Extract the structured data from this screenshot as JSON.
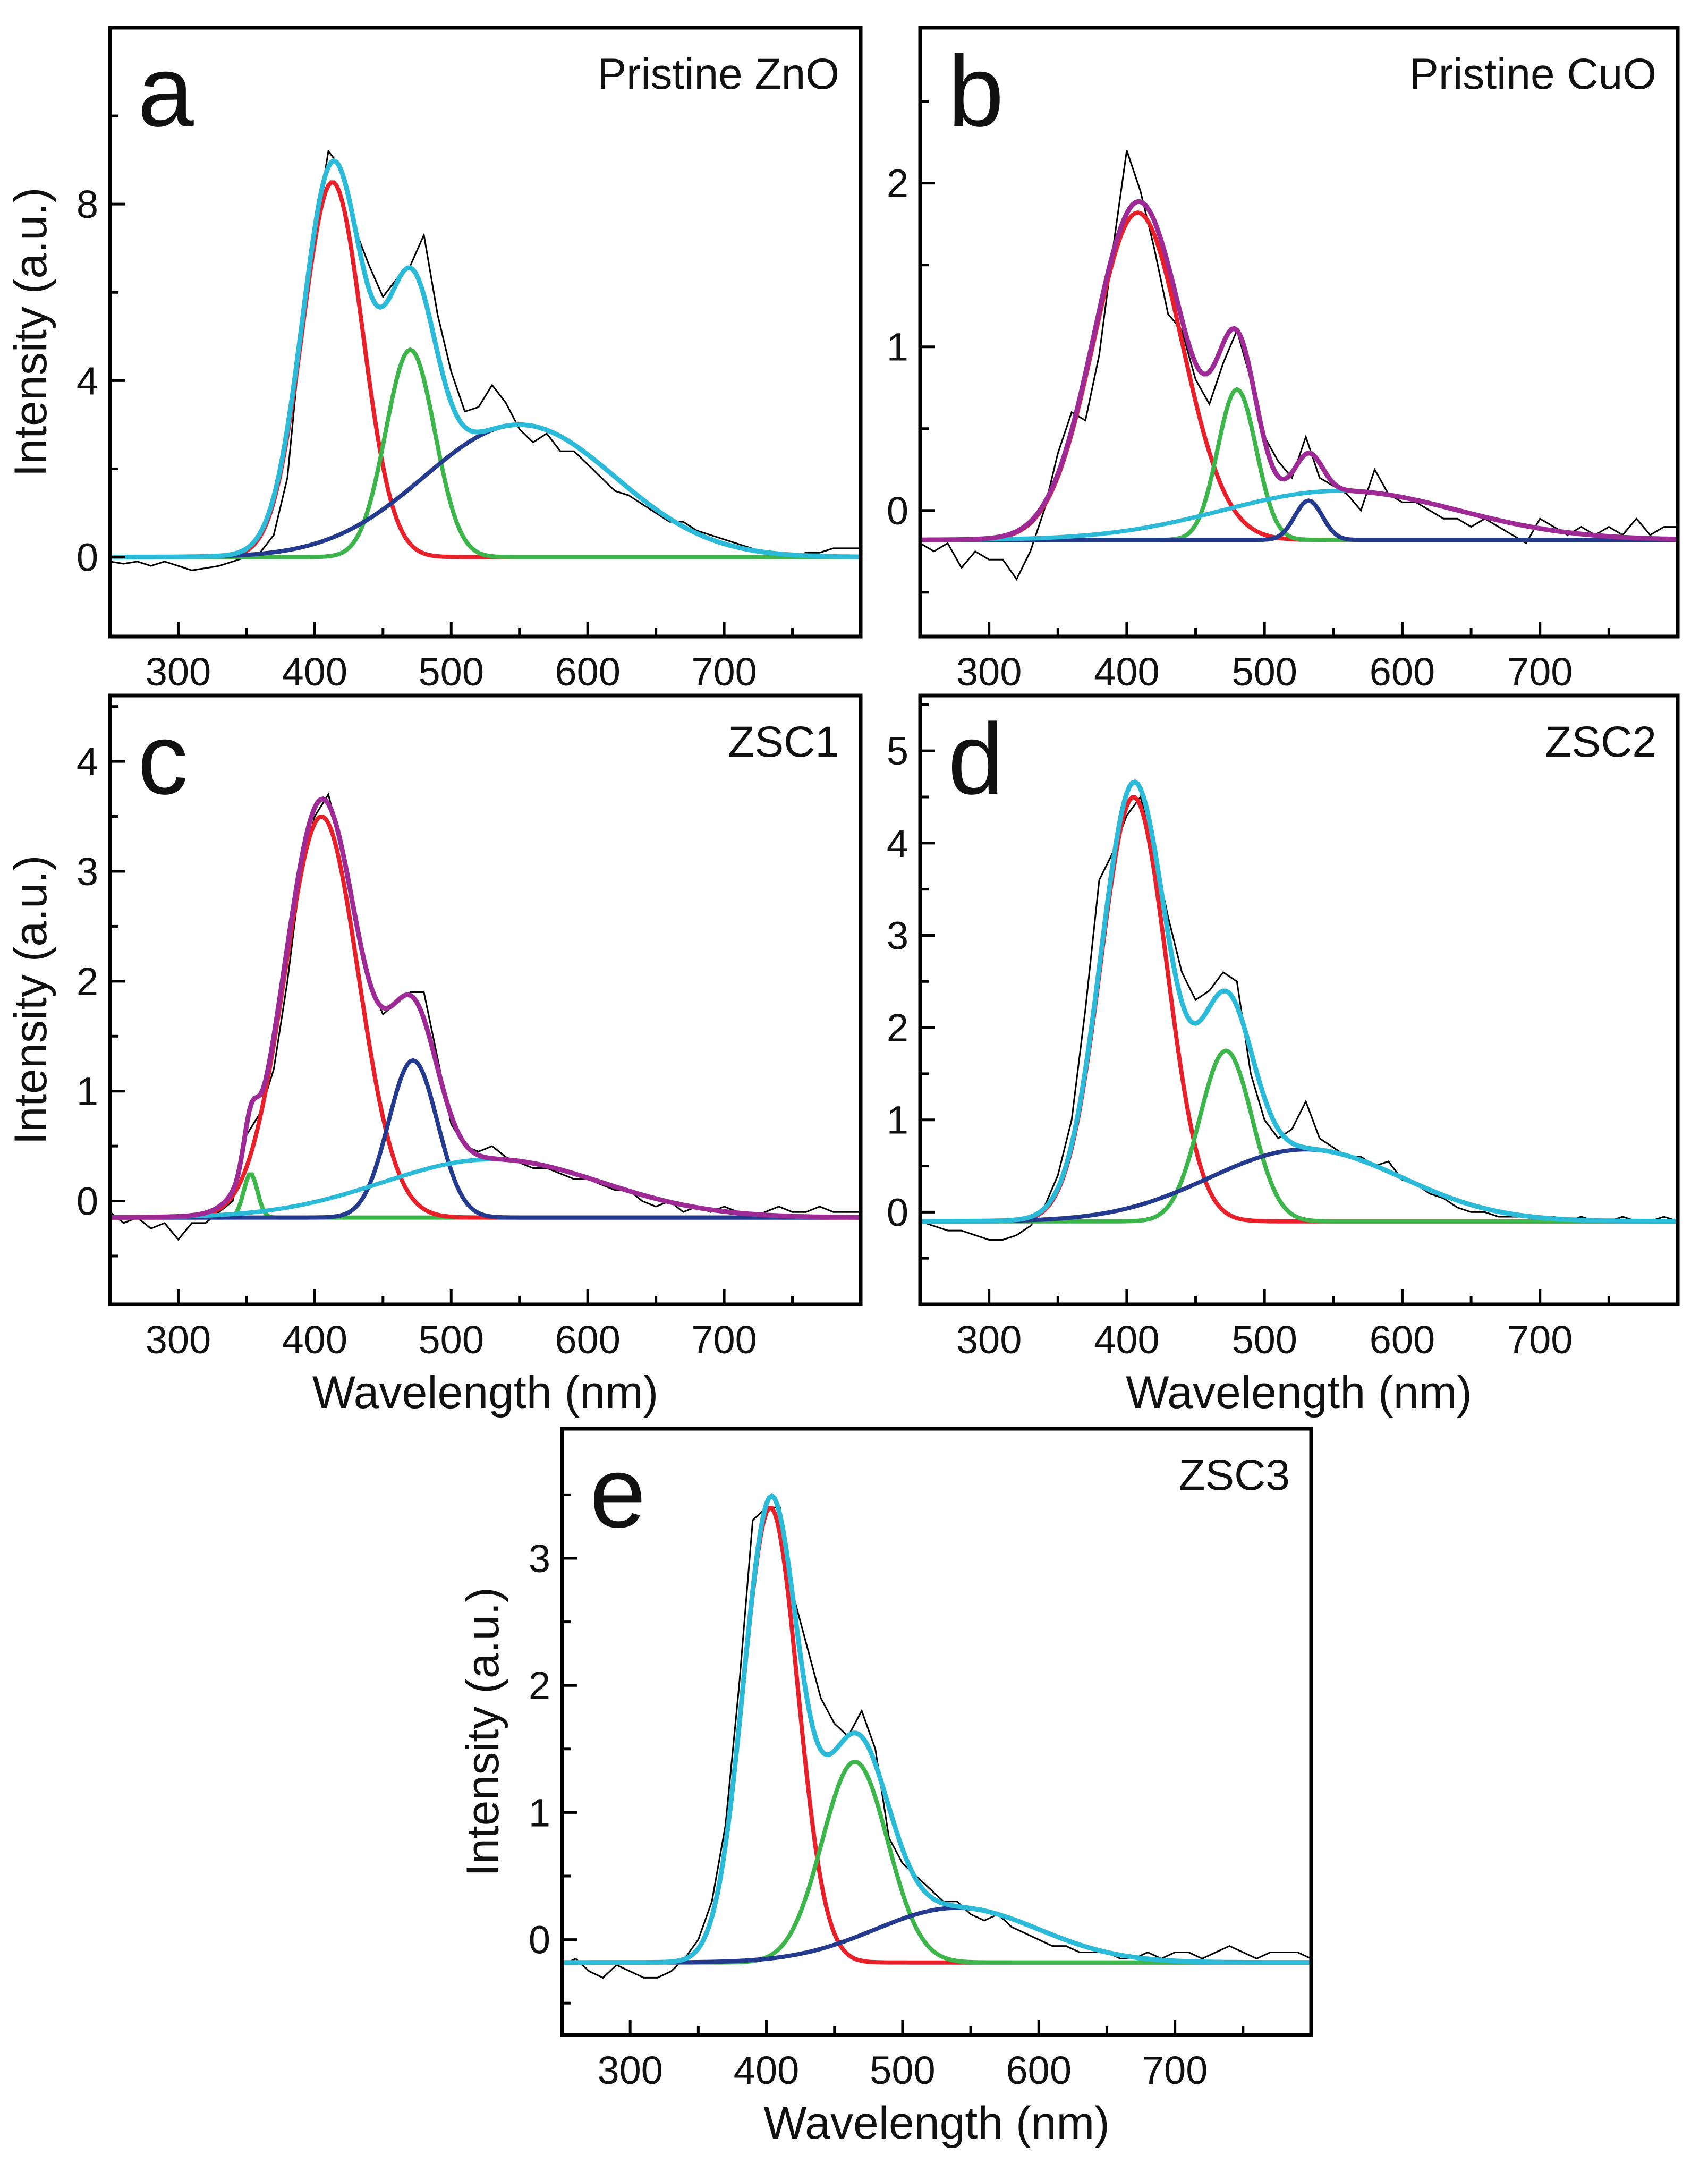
{
  "chart_data": [
    {
      "type": "line",
      "panel_letter": "a",
      "title": "Pristine ZnO",
      "xlabel": "",
      "ylabel": "Intensity (a.u.)",
      "xlim": [
        250,
        800
      ],
      "ylim": [
        -1.8,
        12
      ],
      "xticks": [
        300,
        400,
        500,
        600,
        700
      ],
      "yticks": [
        0,
        4,
        8
      ],
      "baseline": 0,
      "envelope_color": "#2bbbd8",
      "components": [
        {
          "color": "#e8202a",
          "center": 413,
          "amplitude": 8.5,
          "sigma": 22
        },
        {
          "color": "#3cb54a",
          "center": 470,
          "amplitude": 4.7,
          "sigma": 18
        },
        {
          "color": "#233a8f",
          "center": 550,
          "amplitude": 3.0,
          "sigma": 70
        }
      ],
      "measured_x_start": 250,
      "measured_x_step": 10,
      "measured": [
        -0.1,
        -0.15,
        -0.1,
        -0.2,
        -0.1,
        -0.2,
        -0.3,
        -0.25,
        -0.2,
        -0.1,
        0.0,
        0.1,
        0.5,
        1.8,
        5.0,
        7.3,
        9.2,
        8.8,
        7.4,
        6.6,
        5.9,
        6.3,
        6.6,
        7.3,
        5.5,
        4.2,
        3.3,
        3.4,
        3.9,
        3.5,
        2.9,
        2.6,
        2.8,
        2.4,
        2.4,
        2.1,
        1.8,
        1.5,
        1.4,
        1.2,
        1.0,
        0.8,
        0.8,
        0.6,
        0.5,
        0.4,
        0.3,
        0.2,
        0.1,
        0.0,
        0.0,
        0.1,
        0.1,
        0.2,
        0.2,
        0.2
      ]
    },
    {
      "type": "line",
      "panel_letter": "b",
      "title": "Pristine CuO",
      "xlabel": "",
      "ylabel": "",
      "xlim": [
        250,
        800
      ],
      "ylim": [
        -0.77,
        2.95
      ],
      "xticks": [
        300,
        400,
        500,
        600,
        700
      ],
      "yticks": [
        0,
        1,
        2
      ],
      "baseline": -0.18,
      "envelope_color": "#9e2a96",
      "components": [
        {
          "color": "#e8202a",
          "center": 408,
          "amplitude": 2.0,
          "sigma": 32
        },
        {
          "color": "#3cb54a",
          "center": 480,
          "amplitude": 0.92,
          "sigma": 14
        },
        {
          "color": "#233a8f",
          "center": 532,
          "amplitude": 0.24,
          "sigma": 10
        },
        {
          "color": "#2bbbd8",
          "center": 555,
          "amplitude": 0.3,
          "sigma": 85
        }
      ],
      "measured_x_start": 250,
      "measured_x_step": 10,
      "measured": [
        -0.2,
        -0.25,
        -0.2,
        -0.35,
        -0.25,
        -0.3,
        -0.3,
        -0.42,
        -0.25,
        0.0,
        0.35,
        0.6,
        0.55,
        0.95,
        1.6,
        2.2,
        1.95,
        1.6,
        1.2,
        1.1,
        0.8,
        0.65,
        0.9,
        1.1,
        0.8,
        0.45,
        0.3,
        0.2,
        0.45,
        0.2,
        0.15,
        0.1,
        0.0,
        0.25,
        0.1,
        0.05,
        0.05,
        0.0,
        -0.05,
        -0.05,
        -0.1,
        -0.05,
        -0.1,
        -0.15,
        -0.2,
        -0.05,
        -0.1,
        -0.15,
        -0.1,
        -0.15,
        -0.1,
        -0.15,
        -0.05,
        -0.15,
        -0.1,
        -0.1
      ]
    },
    {
      "type": "line",
      "panel_letter": "c",
      "title": "ZSC1",
      "xlabel": "Wavelength (nm)",
      "ylabel": "Intensity (a.u.)",
      "xlim": [
        250,
        800
      ],
      "ylim": [
        -0.94,
        4.6
      ],
      "xticks": [
        300,
        400,
        500,
        600,
        700
      ],
      "yticks": [
        0,
        1,
        2,
        3,
        4
      ],
      "baseline": -0.15,
      "envelope_color": "#9e2a96",
      "components": [
        {
          "color": "#3cb54a",
          "center": 353,
          "amplitude": 0.4,
          "sigma": 5
        },
        {
          "color": "#e8202a",
          "center": 405,
          "amplitude": 3.65,
          "sigma": 27
        },
        {
          "color": "#233a8f",
          "center": 472,
          "amplitude": 1.43,
          "sigma": 18
        },
        {
          "color": "#2bbbd8",
          "center": 530,
          "amplitude": 0.53,
          "sigma": 80
        }
      ],
      "measured_x_start": 250,
      "measured_x_step": 10,
      "measured": [
        -0.1,
        -0.2,
        -0.15,
        -0.25,
        -0.2,
        -0.35,
        -0.2,
        -0.2,
        -0.1,
        0.0,
        0.6,
        0.8,
        1.2,
        2.0,
        3.0,
        3.5,
        3.7,
        3.2,
        2.6,
        2.0,
        1.7,
        1.8,
        1.9,
        1.9,
        1.3,
        0.7,
        0.5,
        0.45,
        0.5,
        0.4,
        0.35,
        0.3,
        0.3,
        0.25,
        0.2,
        0.2,
        0.15,
        0.1,
        0.1,
        0.0,
        -0.05,
        0.0,
        -0.1,
        -0.05,
        -0.1,
        -0.05,
        -0.1,
        -0.15,
        -0.1,
        -0.05,
        -0.1,
        -0.1,
        -0.05,
        -0.1,
        -0.1,
        -0.1
      ]
    },
    {
      "type": "line",
      "panel_letter": "d",
      "title": "ZSC2",
      "xlabel": "Wavelength (nm)",
      "ylabel": "",
      "xlim": [
        250,
        800
      ],
      "ylim": [
        -1.0,
        5.6
      ],
      "xticks": [
        300,
        400,
        500,
        600,
        700
      ],
      "yticks": [
        0,
        1,
        2,
        3,
        4,
        5
      ],
      "baseline": -0.1,
      "envelope_color": "#2bbbd8",
      "components": [
        {
          "color": "#e8202a",
          "center": 405,
          "amplitude": 4.6,
          "sigma": 24
        },
        {
          "color": "#3cb54a",
          "center": 472,
          "amplitude": 1.85,
          "sigma": 19
        },
        {
          "color": "#233a8f",
          "center": 530,
          "amplitude": 0.78,
          "sigma": 70
        }
      ],
      "measured_x_start": 250,
      "measured_x_step": 10,
      "measured": [
        -0.1,
        -0.15,
        -0.2,
        -0.2,
        -0.25,
        -0.3,
        -0.3,
        -0.25,
        -0.15,
        0.05,
        0.4,
        1.0,
        2.2,
        3.6,
        3.9,
        4.3,
        4.5,
        3.9,
        3.2,
        2.6,
        2.3,
        2.4,
        2.6,
        2.5,
        1.5,
        1.0,
        0.8,
        0.9,
        1.2,
        0.8,
        0.7,
        0.6,
        0.6,
        0.5,
        0.55,
        0.35,
        0.3,
        0.2,
        0.15,
        0.05,
        0.0,
        0.0,
        -0.05,
        -0.05,
        -0.05,
        -0.1,
        -0.05,
        -0.1,
        -0.05,
        -0.1,
        -0.1,
        -0.05,
        -0.1,
        -0.1,
        -0.05,
        -0.1
      ]
    },
    {
      "type": "line",
      "panel_letter": "e",
      "title": "ZSC3",
      "xlabel": "Wavelength (nm)",
      "ylabel": "Intensity (a.u.)",
      "xlim": [
        250,
        800
      ],
      "ylim": [
        -0.75,
        4.02
      ],
      "xticks": [
        300,
        400,
        500,
        600,
        700
      ],
      "yticks": [
        0,
        1,
        2,
        3
      ],
      "baseline": -0.18,
      "envelope_color": "#2bbbd8",
      "components": [
        {
          "color": "#e8202a",
          "center": 403,
          "amplitude": 3.58,
          "sigma": 20
        },
        {
          "color": "#3cb54a",
          "center": 465,
          "amplitude": 1.58,
          "sigma": 24
        },
        {
          "color": "#233a8f",
          "center": 540,
          "amplitude": 0.43,
          "sigma": 60
        }
      ],
      "measured_x_start": 250,
      "measured_x_step": 10,
      "measured": [
        -0.2,
        -0.15,
        -0.25,
        -0.3,
        -0.2,
        -0.25,
        -0.3,
        -0.3,
        -0.25,
        -0.15,
        0.0,
        0.3,
        0.9,
        2.0,
        3.3,
        3.4,
        3.4,
        2.7,
        2.3,
        1.9,
        1.7,
        1.6,
        1.8,
        1.5,
        0.8,
        0.6,
        0.5,
        0.4,
        0.3,
        0.3,
        0.2,
        0.15,
        0.2,
        0.1,
        0.05,
        0.0,
        -0.05,
        -0.05,
        -0.1,
        -0.1,
        -0.1,
        -0.15,
        -0.15,
        -0.1,
        -0.15,
        -0.1,
        -0.1,
        -0.15,
        -0.1,
        -0.05,
        -0.1,
        -0.15,
        -0.1,
        -0.1,
        -0.1,
        -0.15
      ]
    }
  ]
}
